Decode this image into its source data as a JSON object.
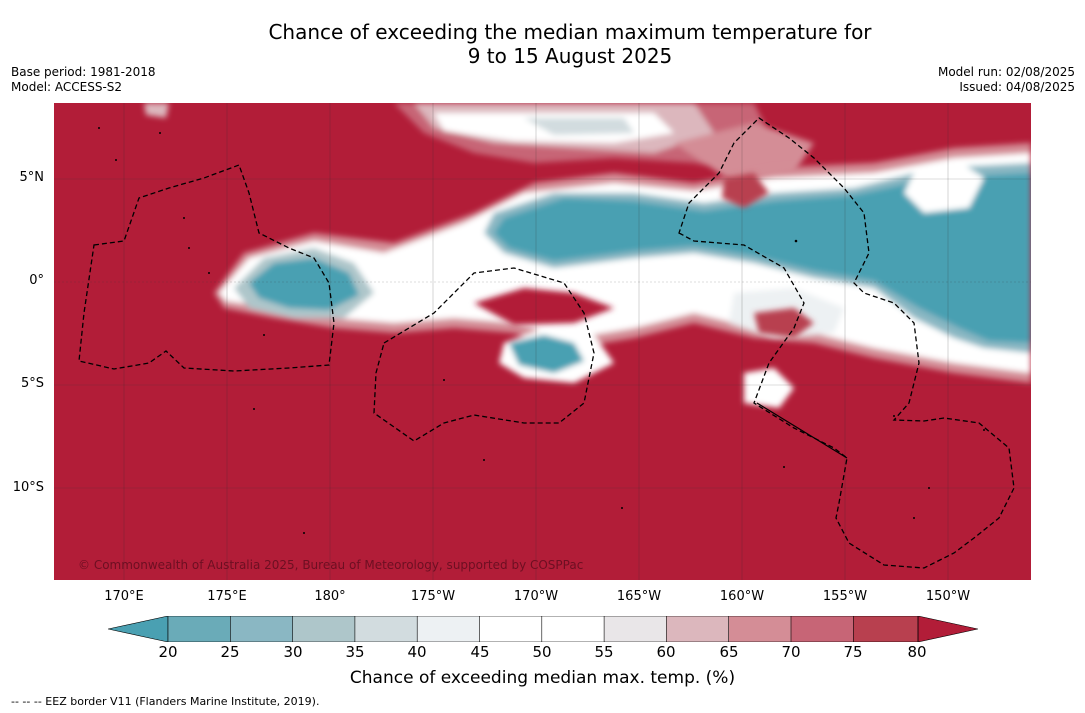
{
  "title": {
    "line1": "Chance of exceeding the median maximum temperature for",
    "line2": "9 to 15 August 2025"
  },
  "meta": {
    "base_period": "Base period: 1981-2018",
    "model": "Model: ACCESS-S2",
    "model_run": "Model run: 02/08/2025",
    "issued": "Issued: 04/08/2025"
  },
  "map": {
    "lat_labels": [
      "5°N",
      "0°",
      "5°S",
      "10°S"
    ],
    "lon_labels": [
      "170°E",
      "175°E",
      "180°",
      "175°W",
      "170°W",
      "165°W",
      "160°W",
      "155°W",
      "150°W"
    ],
    "copyright": "© Commonwealth of Australia 2025, Bureau of Meteorology, supported by COSPPac"
  },
  "colorbar": {
    "ticks": [
      "20",
      "25",
      "30",
      "35",
      "40",
      "45",
      "50",
      "55",
      "60",
      "65",
      "70",
      "75",
      "80"
    ],
    "colors": [
      "#4aa0b2",
      "#6aabb8",
      "#8ab7c3",
      "#aec6ca",
      "#d2dcdf",
      "#edf1f3",
      "#ffffff",
      "#ffffff",
      "#e9e6e8",
      "#dcb7bd",
      "#d48d96",
      "#c76576",
      "#b8404f",
      "#b21d38"
    ],
    "label": "Chance of exceeding median max. temp. (%)"
  },
  "footnote": "--  --  -- EEZ border V11 (Flanders Marine Institute, 2019)."
}
